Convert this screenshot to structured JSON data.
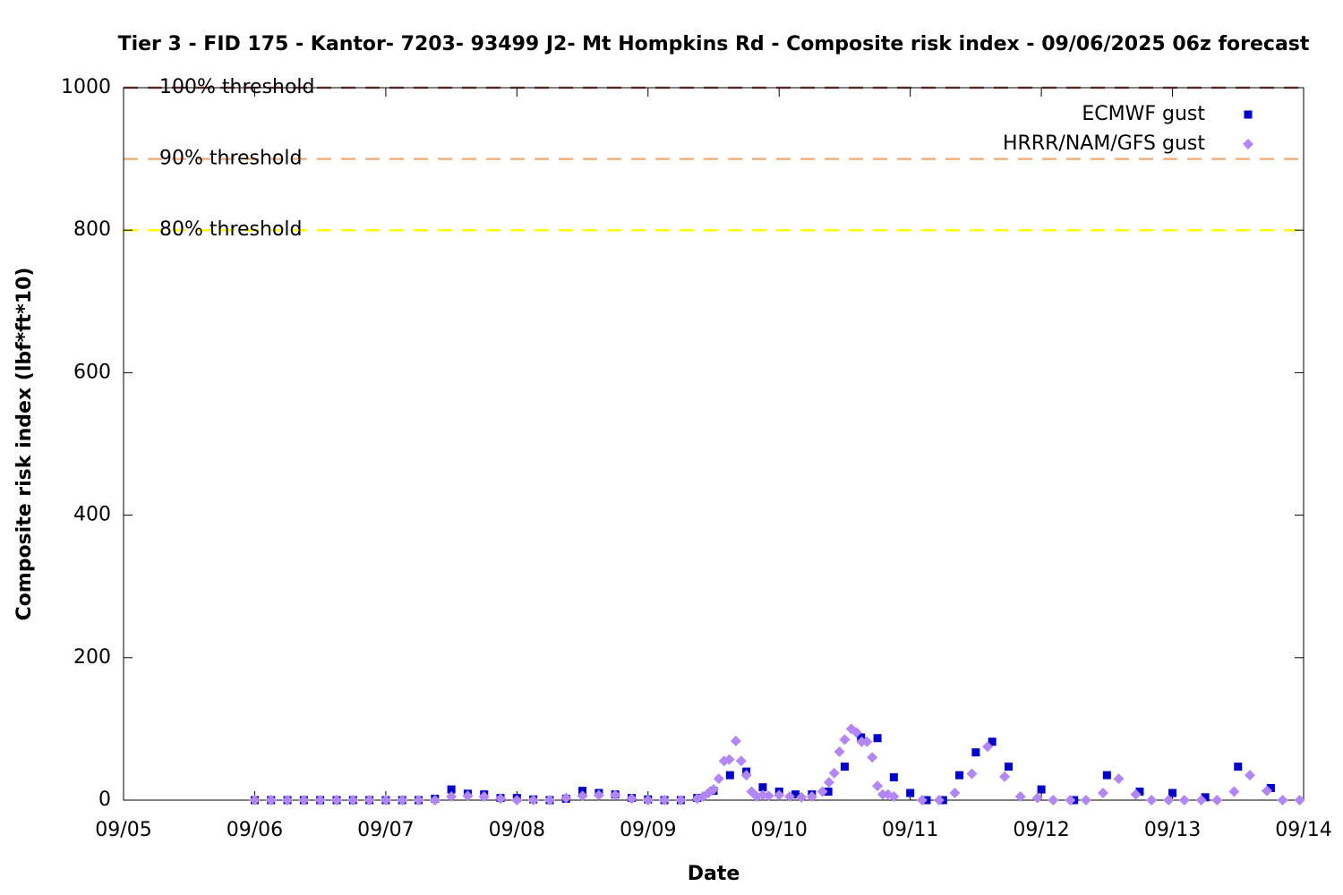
{
  "chart_data": {
    "type": "scatter",
    "title": "Tier 3 - FID 175 - Kantor- 7203- 93499 J2- Mt Hompkins Rd - Composite risk index - 09/06/2025 06z forecast",
    "x_label": "Date",
    "y_label": "Composite risk index (lbf*ft*10)",
    "xlim": [
      0,
      9
    ],
    "xticks": [
      {
        "value": 0,
        "label": "09/05"
      },
      {
        "value": 1,
        "label": "09/06"
      },
      {
        "value": 2,
        "label": "09/07"
      },
      {
        "value": 3,
        "label": "09/08"
      },
      {
        "value": 4,
        "label": "09/09"
      },
      {
        "value": 5,
        "label": "09/10"
      },
      {
        "value": 6,
        "label": "09/11"
      },
      {
        "value": 7,
        "label": "09/12"
      },
      {
        "value": 8,
        "label": "09/13"
      },
      {
        "value": 9,
        "label": "09/14"
      }
    ],
    "ylim": [
      0,
      1000
    ],
    "yticks": [
      0,
      200,
      400,
      600,
      800,
      1000
    ],
    "grid": false,
    "legend": "top-right",
    "thresholds": [
      {
        "label": "100% threshold",
        "value": 1000,
        "color": "#a0504f"
      },
      {
        "label": "90% threshold",
        "value": 900,
        "color": "#f2b27e"
      },
      {
        "label": "80% threshold",
        "value": 800,
        "color": "#ffff00"
      }
    ],
    "series": [
      {
        "name": "ECMWF gust",
        "color": "#0000cc",
        "marker": "square",
        "x": [
          1,
          1.125,
          1.25,
          1.375,
          1.5,
          1.625,
          1.75,
          1.875,
          2,
          2.125,
          2.25,
          2.375,
          2.5,
          2.625,
          2.75,
          2.875,
          3,
          3.125,
          3.25,
          3.375,
          3.5,
          3.625,
          3.75,
          3.875,
          4,
          4.125,
          4.25,
          4.375,
          4.5,
          4.625,
          4.75,
          4.875,
          5,
          5.125,
          5.25,
          5.375,
          5.5,
          5.625,
          5.75,
          5.875,
          6,
          6.125,
          6.25,
          6.375,
          6.5,
          6.625,
          6.75,
          7,
          7.25,
          7.5,
          7.75,
          8,
          8.25,
          8.5,
          8.75
        ],
        "values": [
          0,
          0,
          0,
          0,
          0,
          0,
          0,
          0,
          0,
          0,
          0,
          2,
          15,
          9,
          8,
          3,
          3,
          1,
          0,
          2,
          13,
          10,
          8,
          3,
          1,
          0,
          0,
          3,
          13,
          35,
          40,
          18,
          12,
          8,
          8,
          12,
          47,
          88,
          87,
          32,
          10,
          0,
          0,
          35,
          67,
          82,
          47,
          15,
          0,
          35,
          12,
          10,
          4,
          47,
          17
        ]
      },
      {
        "name": "HRRR/NAM/GFS gust",
        "color": "#b386f5",
        "marker": "diamond",
        "x": [
          1,
          1.125,
          1.25,
          1.375,
          1.5,
          1.625,
          1.75,
          1.875,
          2,
          2.125,
          2.25,
          2.375,
          2.5,
          2.625,
          2.75,
          2.875,
          3,
          3.125,
          3.25,
          3.375,
          3.5,
          3.625,
          3.75,
          3.875,
          4,
          4.125,
          4.25,
          4.375,
          4.42,
          4.46,
          4.5,
          4.54,
          4.58,
          4.62,
          4.67,
          4.71,
          4.75,
          4.79,
          4.83,
          4.875,
          4.92,
          5,
          5.08,
          5.17,
          5.25,
          5.33,
          5.38,
          5.42,
          5.46,
          5.5,
          5.55,
          5.59,
          5.63,
          5.67,
          5.71,
          5.75,
          5.79,
          5.83,
          5.875,
          6.09,
          6.22,
          6.34,
          6.47,
          6.59,
          6.72,
          6.84,
          6.97,
          7.09,
          7.22,
          7.34,
          7.47,
          7.59,
          7.72,
          7.84,
          7.97,
          8.09,
          8.22,
          8.34,
          8.47,
          8.59,
          8.72,
          8.84,
          8.97
        ],
        "values": [
          0,
          0,
          0,
          0,
          0,
          0,
          0,
          0,
          0,
          0,
          0,
          0,
          5,
          6,
          5,
          2,
          0,
          0,
          0,
          3,
          6,
          7,
          7,
          2,
          0,
          0,
          0,
          2,
          5,
          10,
          15,
          30,
          55,
          57,
          83,
          55,
          35,
          12,
          5,
          7,
          6,
          7,
          5,
          4,
          5,
          12,
          25,
          38,
          68,
          85,
          100,
          95,
          82,
          82,
          60,
          20,
          8,
          8,
          5,
          0,
          0,
          10,
          37,
          75,
          33,
          5,
          3,
          0,
          0,
          0,
          10,
          30,
          8,
          0,
          0,
          0,
          0,
          0,
          12,
          35,
          13,
          0,
          0
        ]
      }
    ]
  }
}
